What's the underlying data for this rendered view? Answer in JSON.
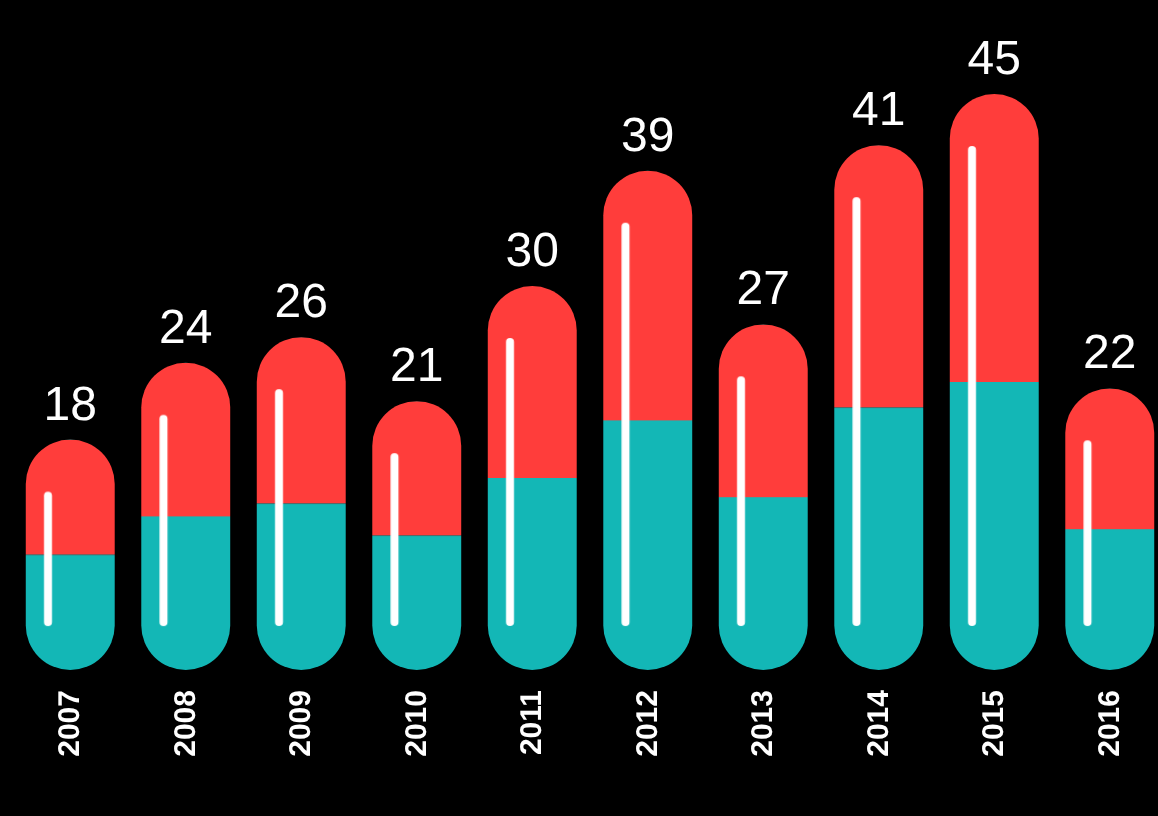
{
  "chart_data": {
    "type": "bar",
    "categories": [
      "2007",
      "2008",
      "2009",
      "2010",
      "2011",
      "2012",
      "2013",
      "2014",
      "2015",
      "2016"
    ],
    "values": [
      18,
      24,
      26,
      21,
      30,
      39,
      27,
      41,
      45,
      22
    ],
    "color": "#ff3d3b",
    "data_labels": true
  }
}
